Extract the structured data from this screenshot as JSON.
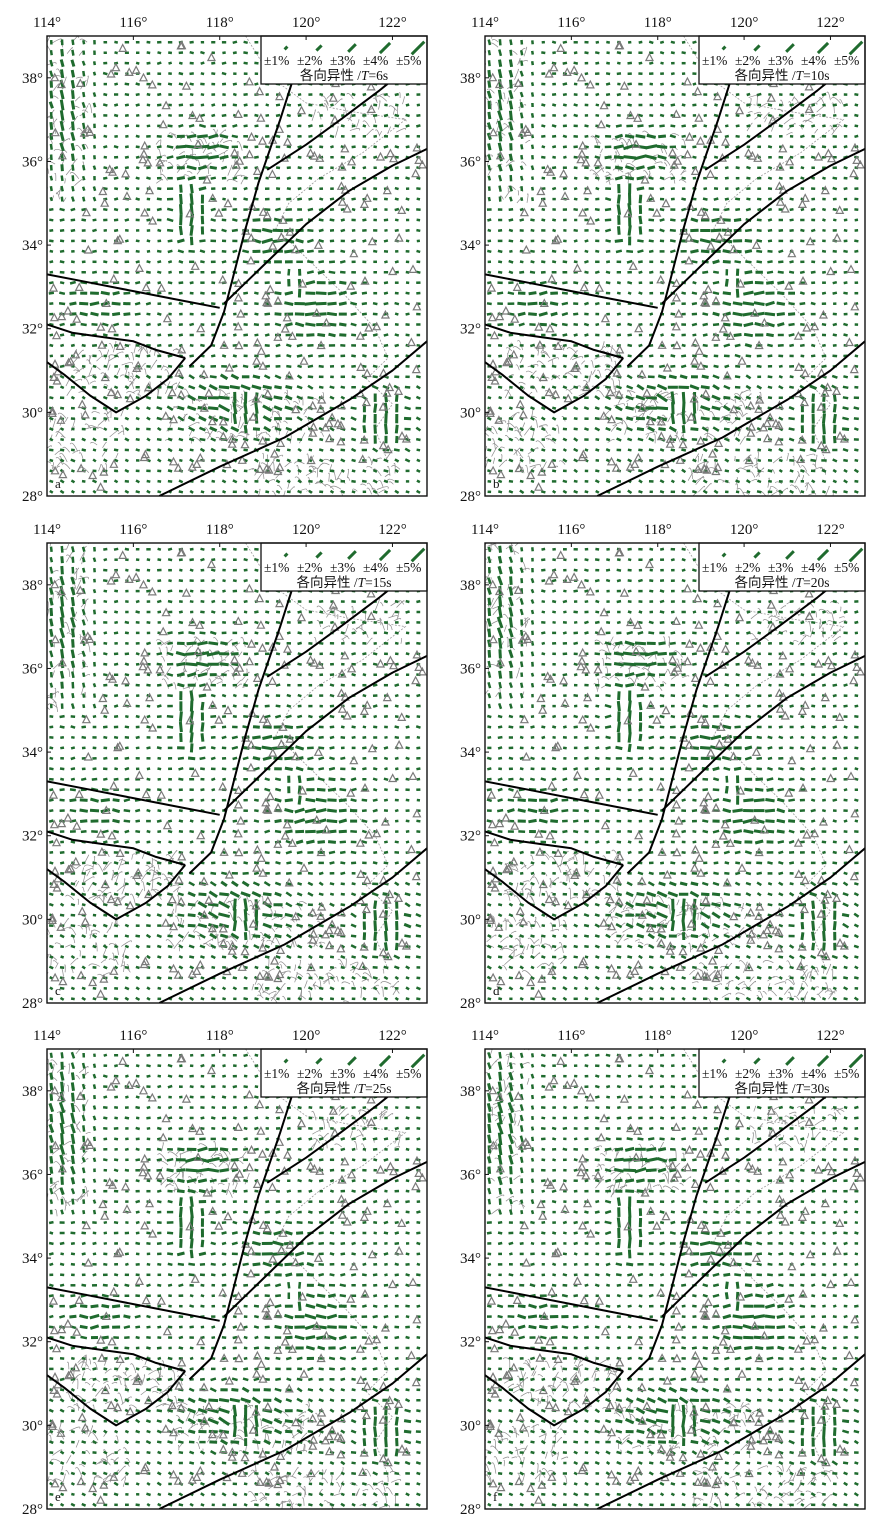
{
  "figure": {
    "x_ticks": [
      "114°",
      "116°",
      "118°",
      "120°",
      "122°"
    ],
    "y_ticks": [
      "38°",
      "36°",
      "34°",
      "32°",
      "30°",
      "28°"
    ],
    "extent": {
      "lon_min": 114,
      "lon_max": 122.8,
      "lat_min": 28,
      "lat_max": 39
    },
    "legend": {
      "scale_labels": [
        "±1%",
        "±2%",
        "±3%",
        "±4%",
        "±5%"
      ],
      "title_prefix": "各向异性 /",
      "title_var": "T"
    },
    "colors": {
      "bar": "#1f6b2e",
      "station": "#7a7a7a",
      "fault": "#000000",
      "relief": "#8c8c8c"
    },
    "panels": [
      {
        "letter": "a",
        "period": "=6s"
      },
      {
        "letter": "b",
        "period": "=10s"
      },
      {
        "letter": "c",
        "period": "=15s"
      },
      {
        "letter": "d",
        "period": "=20s"
      },
      {
        "letter": "e",
        "period": "=25s"
      },
      {
        "letter": "f",
        "period": "=30s"
      }
    ],
    "faults": [
      [
        [
          114.0,
          33.3
        ],
        [
          115.0,
          33.1
        ],
        [
          116.0,
          32.9
        ],
        [
          117.0,
          32.7
        ],
        [
          118.0,
          32.5
        ]
      ],
      [
        [
          114.0,
          32.1
        ],
        [
          114.6,
          31.9
        ],
        [
          115.3,
          31.8
        ],
        [
          116.0,
          31.7
        ],
        [
          116.5,
          31.5
        ],
        [
          117.2,
          31.3
        ]
      ],
      [
        [
          117.2,
          31.3
        ],
        [
          116.8,
          30.8
        ],
        [
          116.3,
          30.4
        ],
        [
          115.6,
          30.0
        ],
        [
          115.0,
          30.4
        ],
        [
          114.4,
          30.9
        ],
        [
          114.0,
          31.2
        ]
      ],
      [
        [
          117.3,
          31.1
        ],
        [
          117.8,
          31.6
        ],
        [
          118.1,
          32.4
        ],
        [
          118.3,
          33.2
        ],
        [
          118.6,
          34.4
        ],
        [
          118.9,
          35.5
        ],
        [
          119.4,
          37.0
        ],
        [
          119.8,
          38.3
        ],
        [
          119.9,
          39.0
        ]
      ],
      [
        [
          118.1,
          32.6
        ],
        [
          118.6,
          33.1
        ],
        [
          119.2,
          33.7
        ],
        [
          120.0,
          34.5
        ],
        [
          121.0,
          35.3
        ],
        [
          122.0,
          35.9
        ],
        [
          122.8,
          36.3
        ]
      ],
      [
        [
          119.1,
          35.8
        ],
        [
          120.0,
          36.4
        ],
        [
          120.8,
          37.0
        ],
        [
          121.7,
          37.7
        ],
        [
          122.3,
          38.2
        ]
      ],
      [
        [
          116.6,
          28.0
        ],
        [
          118.0,
          28.7
        ],
        [
          119.5,
          29.4
        ],
        [
          121.0,
          30.3
        ],
        [
          122.0,
          31.0
        ],
        [
          122.8,
          31.7
        ]
      ]
    ],
    "coastline": [
      [
        118.6,
        39.0
      ],
      [
        119.2,
        38.0
      ],
      [
        120.0,
        37.4
      ],
      [
        121.0,
        37.2
      ],
      [
        122.3,
        37.0
      ],
      [
        121.3,
        36.2
      ],
      [
        120.3,
        35.6
      ],
      [
        119.6,
        35.0
      ],
      [
        119.3,
        34.4
      ],
      [
        120.1,
        33.6
      ],
      [
        120.9,
        32.8
      ],
      [
        121.6,
        32.0
      ],
      [
        121.9,
        31.3
      ],
      [
        121.4,
        30.8
      ],
      [
        122.0,
        30.2
      ],
      [
        121.6,
        29.6
      ],
      [
        121.9,
        28.8
      ]
    ]
  }
}
